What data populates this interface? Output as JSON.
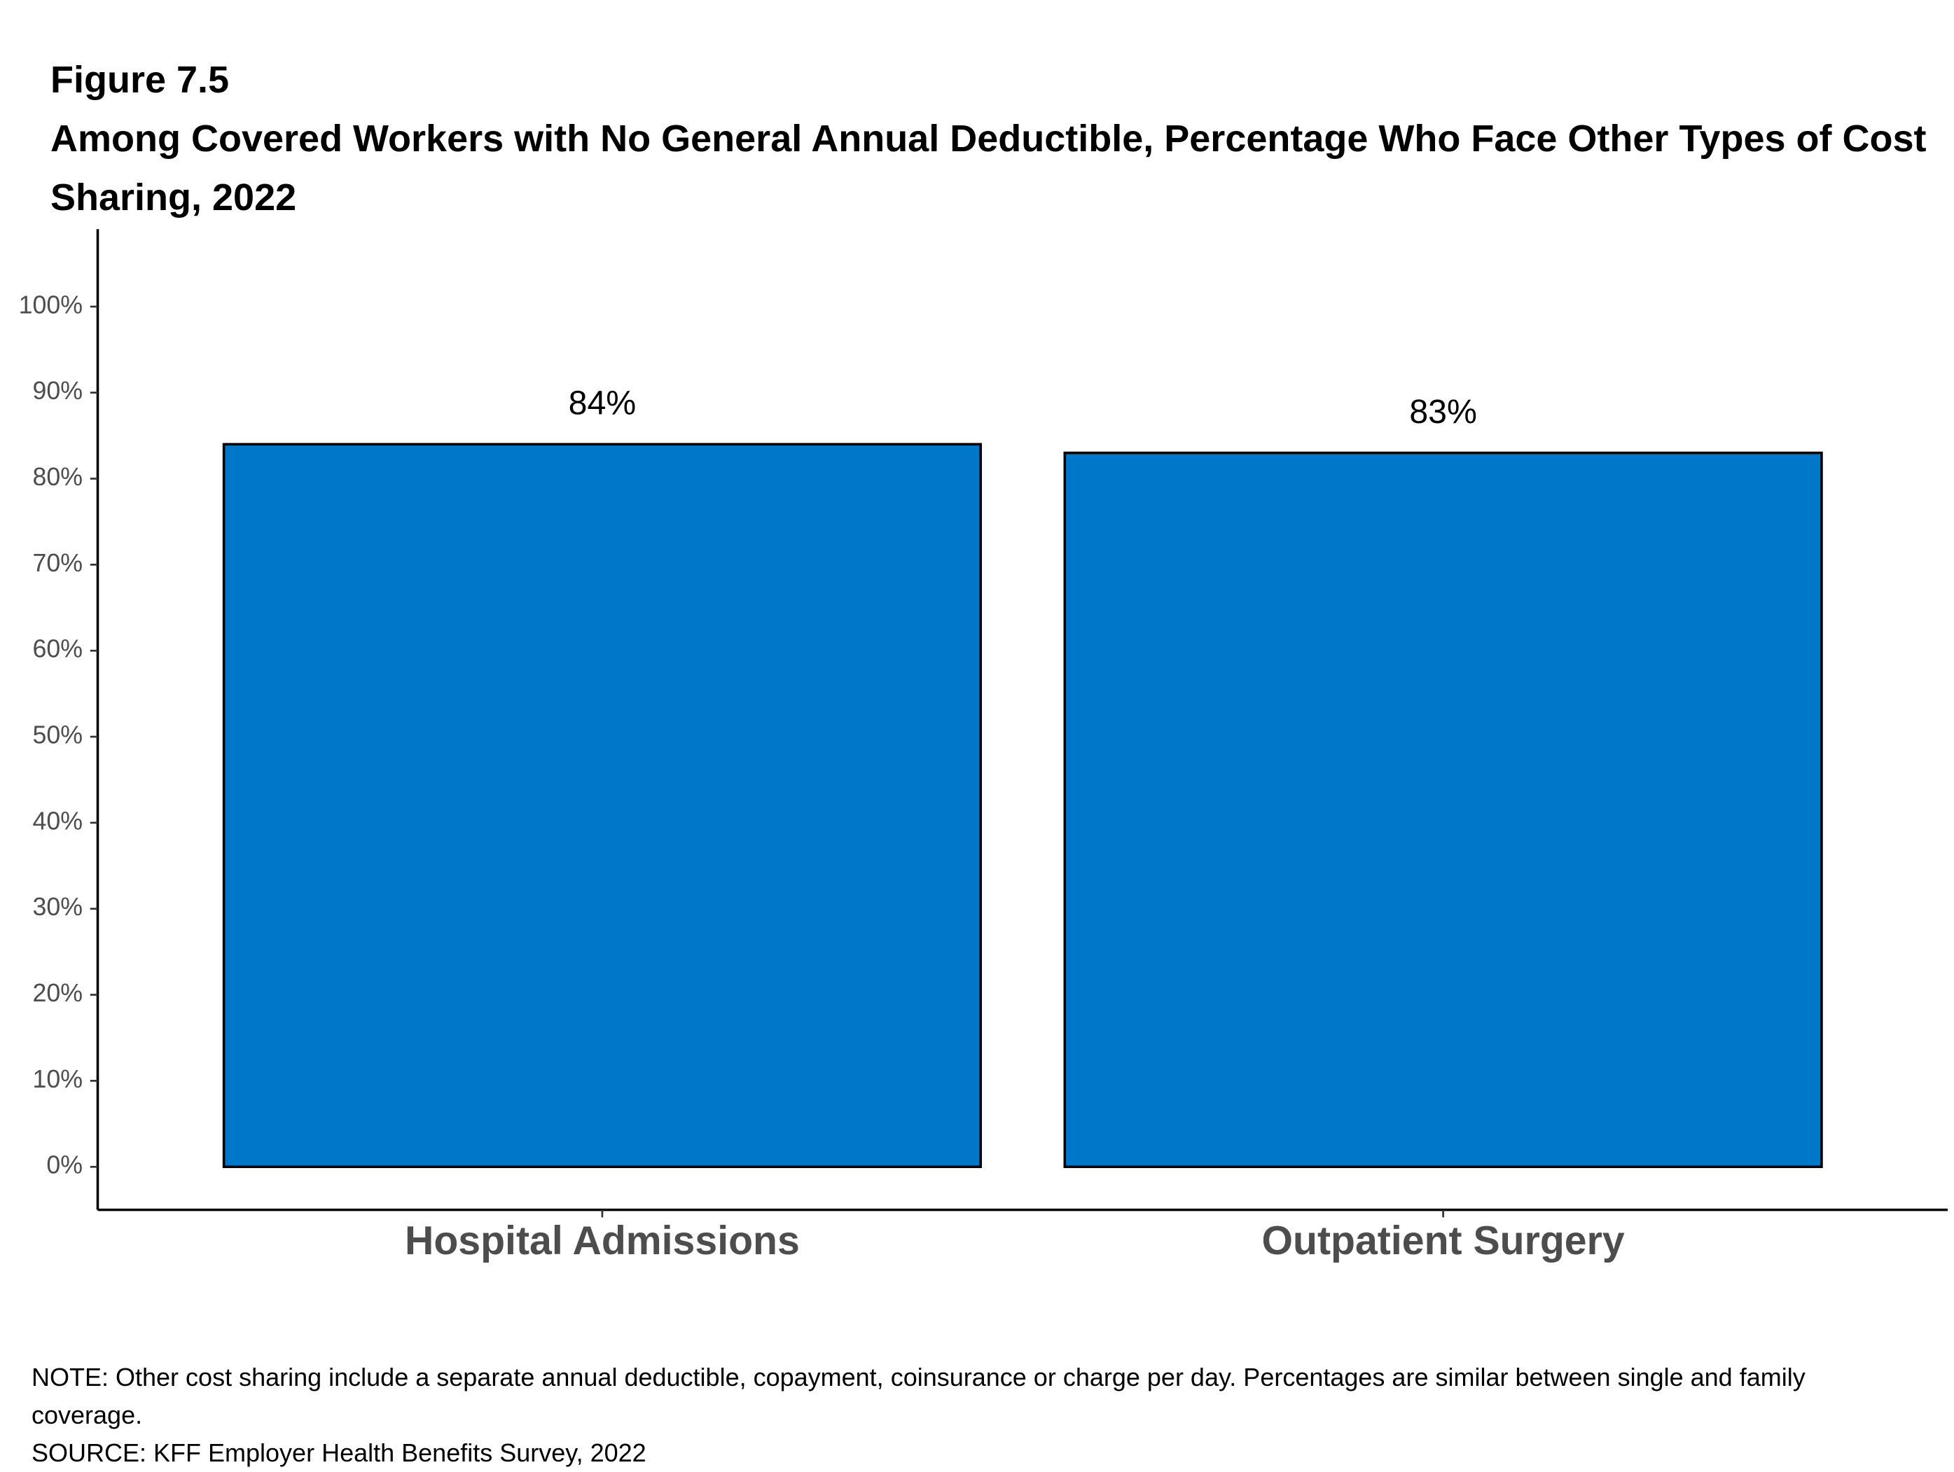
{
  "chart_data": {
    "type": "bar",
    "figure_label": "Figure 7.5",
    "title": "Among Covered Workers with No General Annual Deductible, Percentage Who Face Other Types of Cost Sharing, 2022",
    "categories": [
      "Hospital Admissions",
      "Outpatient Surgery"
    ],
    "values": [
      84,
      83
    ],
    "value_labels": [
      "84%",
      "83%"
    ],
    "color": "#0077c8",
    "ylim": [
      -5,
      109
    ],
    "yticks": [
      {
        "value": 0,
        "label": "0%"
      },
      {
        "value": 10,
        "label": "10%"
      },
      {
        "value": 20,
        "label": "20%"
      },
      {
        "value": 30,
        "label": "30%"
      },
      {
        "value": 40,
        "label": "40%"
      },
      {
        "value": 50,
        "label": "50%"
      },
      {
        "value": 60,
        "label": "60%"
      },
      {
        "value": 70,
        "label": "70%"
      },
      {
        "value": 80,
        "label": "80%"
      },
      {
        "value": 90,
        "label": "90%"
      },
      {
        "value": 100,
        "label": "100%"
      }
    ],
    "note": "NOTE: Other cost sharing include a separate annual deductible, copayment, coinsurance or charge per day. Percentages are similar between single and family coverage.",
    "source": "SOURCE: KFF Employer Health Benefits Survey, 2022"
  }
}
